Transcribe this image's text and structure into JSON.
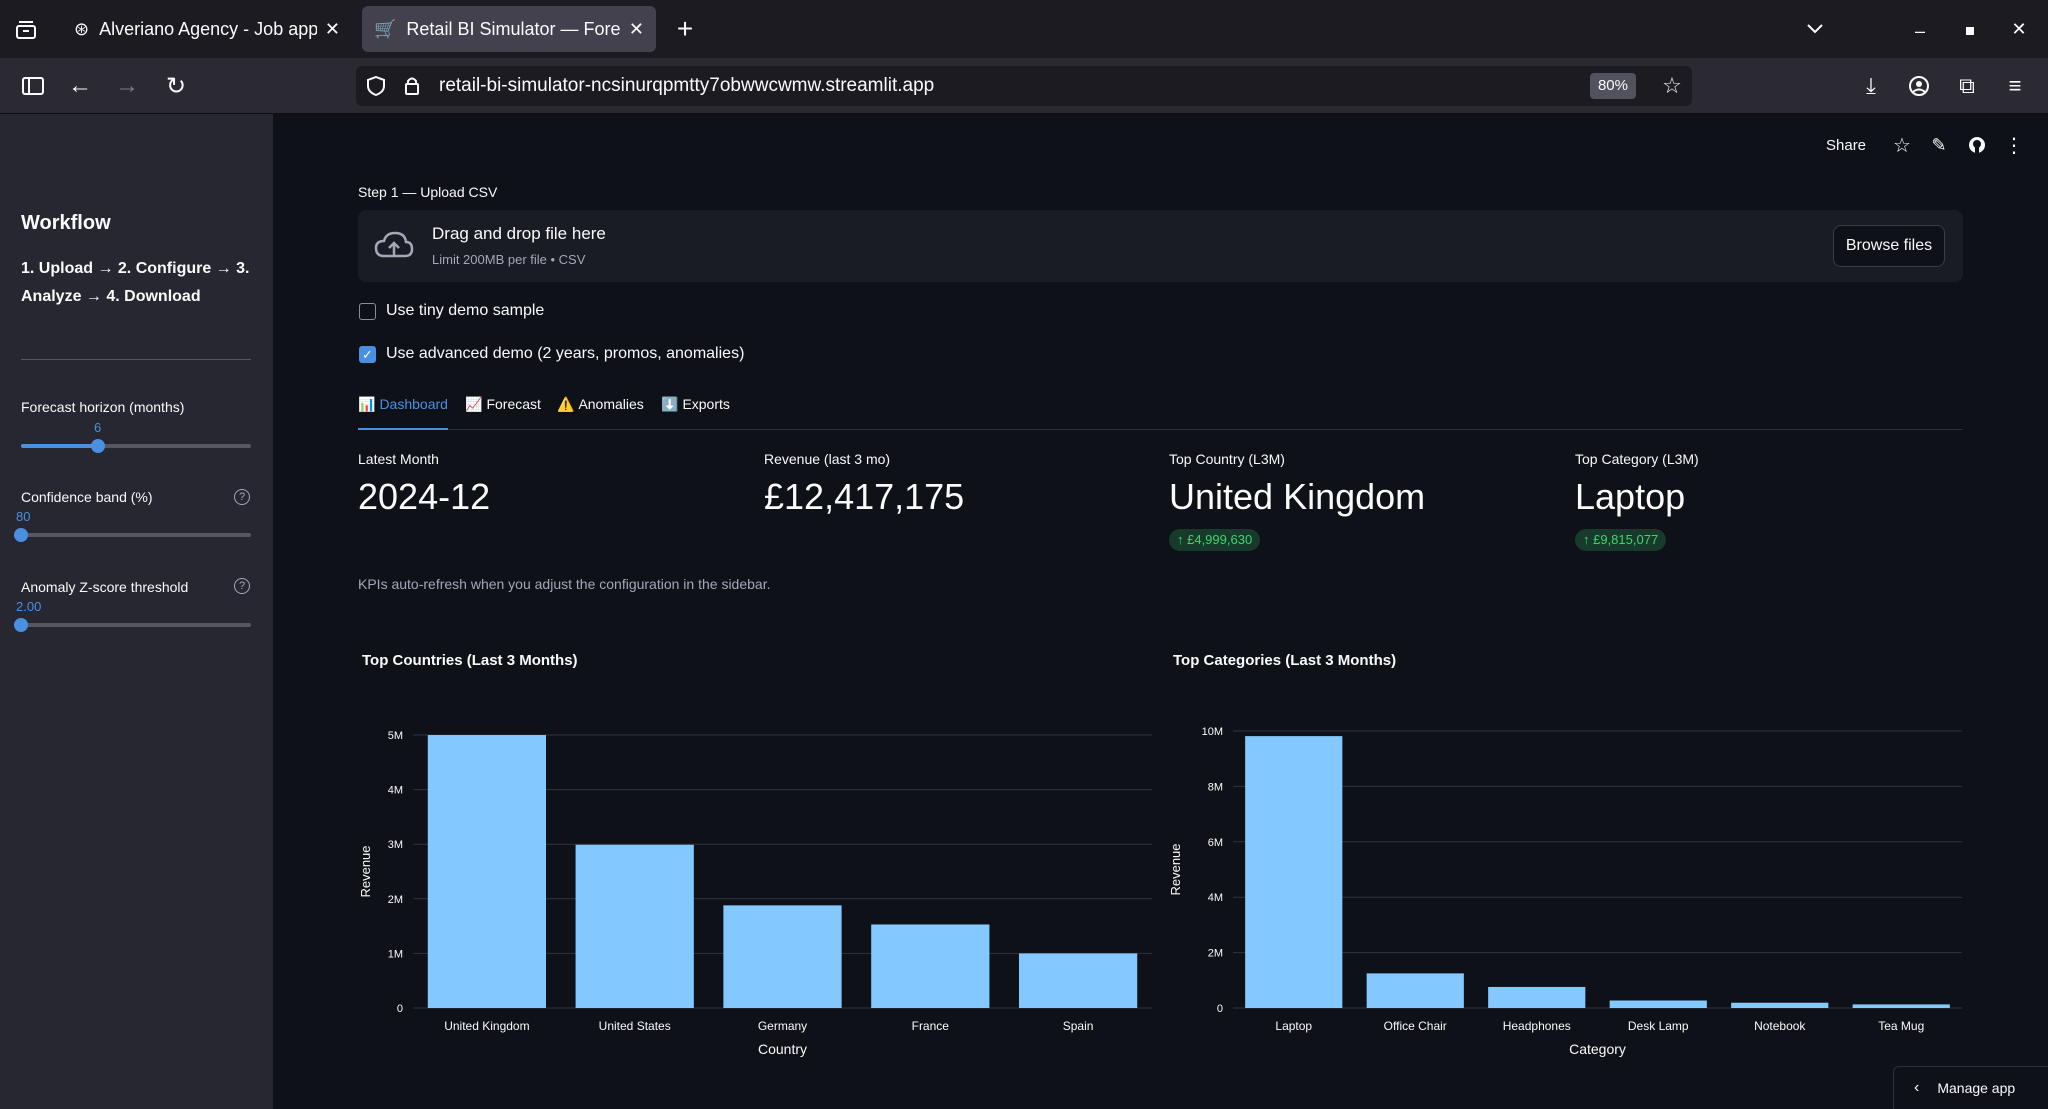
{
  "browser": {
    "tabs": [
      {
        "title": "Alveriano Agency - Job appl",
        "icon": "openai-icon"
      },
      {
        "title": "Retail BI Simulator — Forec",
        "icon": "cart-icon"
      }
    ],
    "url": "retail-bi-simulator-ncsinurqpmtty7obwwcwmw.streamlit.app",
    "zoom": "80%"
  },
  "app_toolbar": {
    "share_label": "Share"
  },
  "sidebar": {
    "title": "Workflow",
    "steps_line1": "1. Upload → 2. Configure → 3.",
    "steps_line2": "Analyze → 4. Download",
    "sliders": [
      {
        "label": "Forecast horizon (months)",
        "value": "6",
        "fraction": 0.33
      },
      {
        "label": "Confidence band (%)",
        "value": "80",
        "fraction": 0.0
      },
      {
        "label": "Anomaly Z-score threshold",
        "value": "2.00",
        "fraction": 0.0
      }
    ]
  },
  "upload": {
    "label": "Step 1 — Upload CSV",
    "drop_title": "Drag and drop file here",
    "drop_limit": "Limit 200MB per file • CSV",
    "browse_label": "Browse files"
  },
  "options": {
    "tiny_demo": {
      "label": "Use tiny demo sample",
      "checked": false
    },
    "advanced_demo": {
      "label": "Use advanced demo (2 years, promos, anomalies)",
      "checked": true
    }
  },
  "tabs": [
    {
      "icon": "📊",
      "label": "Dashboard"
    },
    {
      "icon": "📈",
      "label": "Forecast"
    },
    {
      "icon": "⚠️",
      "label": "Anomalies"
    },
    {
      "icon": "⬇️",
      "label": "Exports"
    }
  ],
  "metrics": [
    {
      "label": "Latest Month",
      "value": "2024-12",
      "delta": ""
    },
    {
      "label": "Revenue (last 3 mo)",
      "value": "£12,417,175",
      "delta": ""
    },
    {
      "label": "Top Country (L3M)",
      "value": "United Kingdom",
      "delta": "↑ £4,999,630"
    },
    {
      "label": "Top Category (L3M)",
      "value": "Laptop",
      "delta": "↑ £9,815,077"
    }
  ],
  "kpi_note": "KPIs auto-refresh when you adjust the configuration in the sidebar.",
  "manage_app": "Manage app",
  "colors": {
    "bar": "#83c9ff",
    "accent": "#4a90e2"
  },
  "chart_data": [
    {
      "type": "bar",
      "title": "Top Countries (Last 3 Months)",
      "categories": [
        "United Kingdom",
        "United States",
        "Germany",
        "France",
        "Spain"
      ],
      "values": [
        4999630,
        2990000,
        1880000,
        1530000,
        1000000
      ],
      "xlabel": "Country",
      "ylabel": "Revenue",
      "ylim": [
        0,
        5000000
      ],
      "yticks": [
        0,
        1000000,
        2000000,
        3000000,
        4000000,
        5000000
      ],
      "ytick_labels": [
        "0",
        "1M",
        "2M",
        "3M",
        "4M",
        "5M"
      ],
      "grid": true
    },
    {
      "type": "bar",
      "title": "Top Categories (Last 3 Months)",
      "categories": [
        "Laptop",
        "Office Chair",
        "Headphones",
        "Desk Lamp",
        "Notebook",
        "Tea Mug"
      ],
      "values": [
        9815077,
        1250000,
        760000,
        270000,
        190000,
        130000
      ],
      "xlabel": "Category",
      "ylabel": "Revenue",
      "ylim": [
        0,
        10000000
      ],
      "yticks": [
        0,
        2000000,
        4000000,
        6000000,
        8000000,
        10000000
      ],
      "ytick_labels": [
        "0",
        "2M",
        "4M",
        "6M",
        "8M",
        "10M"
      ],
      "grid": true
    }
  ]
}
